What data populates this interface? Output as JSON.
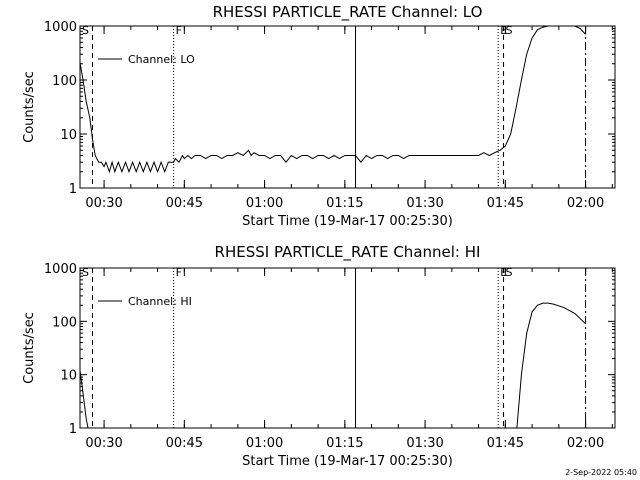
{
  "footer": {
    "timestamp": "2-Sep-2022 05:40"
  },
  "chart_data": [
    {
      "type": "line",
      "title": "RHESSI PARTICLE_RATE Channel: LO",
      "xlabel": "Start Time (19-Mar-17 00:25:30)",
      "ylabel": "Counts/sec",
      "yscale": "log",
      "ylim": [
        1,
        1000
      ],
      "xlim": [
        "00:25:30",
        "02:05:30"
      ],
      "x_tick_labels": [
        "00:30",
        "00:45",
        "01:00",
        "01:15",
        "01:30",
        "01:45",
        "02:00"
      ],
      "y_tick_labels": [
        "1",
        "10",
        "100",
        "1000"
      ],
      "legend": {
        "position": "top-left",
        "entries": [
          "Channel: LO"
        ]
      },
      "markers": [
        {
          "time": "00:25:30",
          "style": "dotted",
          "label": "S"
        },
        {
          "time": "00:27:50",
          "style": "dashed",
          "label": ""
        },
        {
          "time": "00:43:00",
          "style": "dotted",
          "label": "F"
        },
        {
          "time": "01:17:00",
          "style": "solid",
          "label": ""
        },
        {
          "time": "01:43:40",
          "style": "dotted",
          "label": "E"
        },
        {
          "time": "01:44:40",
          "style": "dashed",
          "label": "S"
        },
        {
          "time": "02:00:00",
          "style": "dashdot",
          "label": ""
        }
      ],
      "series": [
        {
          "name": "Channel: LO",
          "points": [
            [
              "00:25:30",
              210
            ],
            [
              "00:26:00",
              110
            ],
            [
              "00:26:40",
              40
            ],
            [
              "00:27:20",
              20
            ],
            [
              "00:27:50",
              8
            ],
            [
              "00:28:20",
              4
            ],
            [
              "00:29:00",
              3
            ],
            [
              "00:29:30",
              3
            ],
            [
              "00:30:00",
              2.5
            ],
            [
              "00:30:20",
              3
            ],
            [
              "00:31:00",
              2
            ],
            [
              "00:31:30",
              3
            ],
            [
              "00:32:00",
              2
            ],
            [
              "00:32:40",
              3
            ],
            [
              "00:33:20",
              2
            ],
            [
              "00:34:00",
              3
            ],
            [
              "00:34:40",
              2
            ],
            [
              "00:35:20",
              3
            ],
            [
              "00:36:00",
              2
            ],
            [
              "00:36:40",
              3
            ],
            [
              "00:37:20",
              2
            ],
            [
              "00:38:00",
              3
            ],
            [
              "00:38:40",
              2
            ],
            [
              "00:39:20",
              3
            ],
            [
              "00:40:00",
              2
            ],
            [
              "00:40:40",
              3
            ],
            [
              "00:41:20",
              2
            ],
            [
              "00:42:00",
              3
            ],
            [
              "00:43:00",
              3
            ],
            [
              "00:43:20",
              3.5
            ],
            [
              "00:44:00",
              3
            ],
            [
              "00:44:40",
              4
            ],
            [
              "00:45:00",
              3.5
            ],
            [
              "00:45:40",
              4
            ],
            [
              "00:46:20",
              3.5
            ],
            [
              "00:47:00",
              4
            ],
            [
              "00:48:00",
              4
            ],
            [
              "00:49:00",
              3.5
            ],
            [
              "00:50:00",
              4
            ],
            [
              "00:51:00",
              4
            ],
            [
              "00:52:00",
              3.5
            ],
            [
              "00:53:00",
              4
            ],
            [
              "00:54:00",
              4
            ],
            [
              "00:55:00",
              4.5
            ],
            [
              "00:56:00",
              4
            ],
            [
              "00:57:00",
              5
            ],
            [
              "00:57:30",
              4
            ],
            [
              "00:58:00",
              4.5
            ],
            [
              "00:59:00",
              4
            ],
            [
              "01:00:00",
              4
            ],
            [
              "01:01:00",
              3.5
            ],
            [
              "01:02:00",
              4
            ],
            [
              "01:03:00",
              4
            ],
            [
              "01:04:00",
              3
            ],
            [
              "01:05:00",
              4
            ],
            [
              "01:06:00",
              3.5
            ],
            [
              "01:07:00",
              4
            ],
            [
              "01:08:00",
              4
            ],
            [
              "01:09:00",
              3.5
            ],
            [
              "01:10:00",
              4
            ],
            [
              "01:11:00",
              4
            ],
            [
              "01:12:00",
              3.5
            ],
            [
              "01:13:00",
              4
            ],
            [
              "01:14:00",
              3.5
            ],
            [
              "01:15:00",
              4
            ],
            [
              "01:16:00",
              4
            ],
            [
              "01:17:00",
              4
            ],
            [
              "01:18:00",
              3
            ],
            [
              "01:19:00",
              4
            ],
            [
              "01:20:00",
              3.5
            ],
            [
              "01:21:00",
              4
            ],
            [
              "01:22:00",
              4
            ],
            [
              "01:23:00",
              3.5
            ],
            [
              "01:24:00",
              4
            ],
            [
              "01:25:00",
              4
            ],
            [
              "01:26:00",
              3.5
            ],
            [
              "01:27:00",
              4
            ],
            [
              "01:30:00",
              4
            ],
            [
              "01:35:00",
              4
            ],
            [
              "01:40:00",
              4
            ],
            [
              "01:41:00",
              4.5
            ],
            [
              "01:42:00",
              4
            ],
            [
              "01:43:00",
              4.5
            ],
            [
              "01:44:00",
              5
            ],
            [
              "01:45:00",
              6
            ],
            [
              "01:46:00",
              10
            ],
            [
              "01:47:00",
              30
            ],
            [
              "01:48:00",
              100
            ],
            [
              "01:49:00",
              300
            ],
            [
              "01:50:00",
              600
            ],
            [
              "01:51:00",
              850
            ],
            [
              "01:52:00",
              950
            ],
            [
              "01:53:00",
              1000
            ],
            [
              "01:54:00",
              1000
            ],
            [
              "01:56:00",
              1000
            ],
            [
              "01:58:00",
              1000
            ],
            [
              "01:59:00",
              900
            ],
            [
              "02:00:00",
              700
            ]
          ]
        }
      ]
    },
    {
      "type": "line",
      "title": "RHESSI PARTICLE_RATE Channel: HI",
      "xlabel": "Start Time (19-Mar-17 00:25:30)",
      "ylabel": "Counts/sec",
      "yscale": "log",
      "ylim": [
        1,
        1000
      ],
      "xlim": [
        "00:25:30",
        "02:05:30"
      ],
      "x_tick_labels": [
        "00:30",
        "00:45",
        "01:00",
        "01:15",
        "01:30",
        "01:45",
        "02:00"
      ],
      "y_tick_labels": [
        "1",
        "10",
        "100",
        "1000"
      ],
      "legend": {
        "position": "top-left",
        "entries": [
          "Channel: HI"
        ]
      },
      "markers": [
        {
          "time": "00:25:30",
          "style": "dotted",
          "label": "S"
        },
        {
          "time": "00:27:50",
          "style": "dashed",
          "label": ""
        },
        {
          "time": "00:43:00",
          "style": "dotted",
          "label": "F"
        },
        {
          "time": "01:17:00",
          "style": "solid",
          "label": ""
        },
        {
          "time": "01:43:40",
          "style": "dotted",
          "label": "E"
        },
        {
          "time": "01:44:40",
          "style": "dashed",
          "label": "S"
        },
        {
          "time": "02:00:00",
          "style": "dashdot",
          "label": ""
        }
      ],
      "series": [
        {
          "name": "Channel: HI",
          "points": [
            [
              "00:25:30",
              12
            ],
            [
              "00:26:00",
              5
            ],
            [
              "00:26:40",
              1.5
            ],
            [
              "00:27:00",
              1
            ]
          ]
        },
        {
          "name": "Channel: HI",
          "points": [
            [
              "01:47:10",
              1
            ],
            [
              "01:48:00",
              10
            ],
            [
              "01:49:00",
              60
            ],
            [
              "01:50:00",
              150
            ],
            [
              "01:51:00",
              200
            ],
            [
              "01:52:00",
              220
            ],
            [
              "01:53:00",
              220
            ],
            [
              "01:54:00",
              210
            ],
            [
              "01:56:00",
              180
            ],
            [
              "01:58:00",
              140
            ],
            [
              "02:00:00",
              90
            ]
          ]
        }
      ]
    }
  ]
}
